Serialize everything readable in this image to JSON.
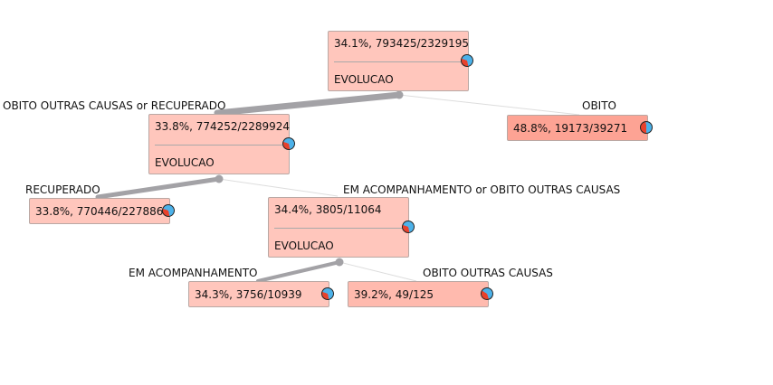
{
  "colors": {
    "node_fill": "#ffc6bc",
    "node_fill_obito": "#fda394",
    "node_fill_obito_outras": "#ffbaae",
    "edge_main": "#a3a2a6",
    "edge_thin": "#dddddd",
    "pie_recuperado": "#4cb2ea",
    "pie_obito": "#e8412c"
  },
  "icons": {
    "pie": "pie-chart-icon",
    "branch": "branch-dot-icon"
  },
  "tree": {
    "root": {
      "stat": "34.1%, 793425/2329195",
      "attribute": "EVOLUCAO"
    },
    "n1": {
      "stat": "33.8%, 774252/2289924",
      "attribute": "EVOLUCAO"
    },
    "leaf_obito": {
      "stat": "48.8%, 19173/39271"
    },
    "leaf_recuperado": {
      "stat": "33.8%, 770446/2278860"
    },
    "n2": {
      "stat": "34.4%, 3805/11064",
      "attribute": "EVOLUCAO"
    },
    "leaf_em_acompanhamento": {
      "stat": "34.3%, 3756/10939"
    },
    "leaf_obito_outras": {
      "stat": "39.2%, 49/125"
    }
  },
  "edges": {
    "root_left": "OBITO OUTRAS CAUSAS or RECUPERADO",
    "root_right": "OBITO",
    "n1_left": "RECUPERADO",
    "n1_right": "EM ACOMPANHAMENTO or OBITO OUTRAS CAUSAS",
    "n2_left": "EM ACOMPANHAMENTO",
    "n2_right": "OBITO OUTRAS CAUSAS"
  }
}
